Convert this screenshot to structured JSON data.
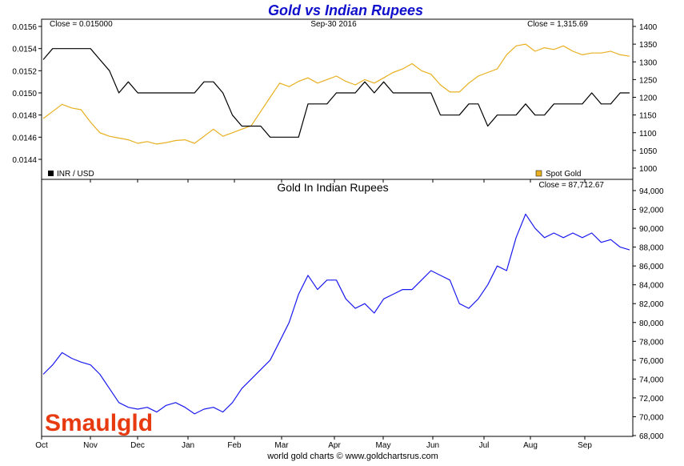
{
  "title": "Gold vs Indian Rupees",
  "footer": "world gold charts © www.goldchartsrus.com",
  "logo_text": "Smaulgld",
  "colors": {
    "title": "#1010cc",
    "inr": "#000000",
    "gold": "#e8b020",
    "rupee_gold": "#1a1aee",
    "grid": "#dddddd"
  },
  "top_panel": {
    "left_close": "Close = 0.015000",
    "date": "Sep-30  2016",
    "right_close": "Close = 1,315.69",
    "legend_left": "INR / USD",
    "legend_right": "Spot Gold",
    "left_axis_ticks": [
      "0.0156",
      "0.0154",
      "0.0152",
      "0.0150",
      "0.0148",
      "0.0146",
      "0.0144"
    ],
    "right_axis_ticks": [
      "1400",
      "1350",
      "1300",
      "1250",
      "1200",
      "1150",
      "1100",
      "1050",
      "1000"
    ]
  },
  "bottom_panel": {
    "title": "Gold In Indian Rupees",
    "right_close": "Close = 87,712.67",
    "axis_ticks": [
      "94,000",
      "92,000",
      "90,000",
      "88,000",
      "86,000",
      "84,000",
      "82,000",
      "80,000",
      "78,000",
      "76,000",
      "74,000",
      "72,000",
      "70,000",
      "68,000"
    ]
  },
  "x_axis_ticks": [
    "Oct",
    "Nov",
    "Dec",
    "Jan",
    "Feb",
    "Mar",
    "Apr",
    "May",
    "Jun",
    "Jul",
    "Aug",
    "Sep"
  ],
  "chart_data": [
    {
      "type": "line",
      "x_range": [
        "Oct 2015",
        "Sep-30 2016"
      ],
      "y_left_range": [
        0.0144,
        0.0156
      ],
      "y_right_range": [
        1000,
        1400
      ],
      "series": [
        {
          "name": "INR / USD",
          "axis": "left",
          "values": [
            0.0153,
            0.0154,
            0.0154,
            0.0154,
            0.0154,
            0.0154,
            0.0153,
            0.0152,
            0.015,
            0.0151,
            0.015,
            0.015,
            0.015,
            0.015,
            0.015,
            0.015,
            0.015,
            0.0151,
            0.0151,
            0.015,
            0.0148,
            0.0147,
            0.0147,
            0.0147,
            0.0146,
            0.0146,
            0.0146,
            0.0146,
            0.0149,
            0.0149,
            0.0149,
            0.015,
            0.015,
            0.015,
            0.0151,
            0.015,
            0.0151,
            0.015,
            0.015,
            0.015,
            0.015,
            0.015,
            0.0148,
            0.0148,
            0.0148,
            0.0149,
            0.0149,
            0.0147,
            0.0148,
            0.0148,
            0.0148,
            0.0149,
            0.0148,
            0.0148,
            0.0149,
            0.0149,
            0.0149,
            0.0149,
            0.015,
            0.0149,
            0.0149,
            0.015,
            0.015
          ]
        },
        {
          "name": "Spot Gold",
          "axis": "right",
          "values": [
            1140,
            1160,
            1180,
            1170,
            1165,
            1130,
            1100,
            1090,
            1085,
            1080,
            1070,
            1075,
            1068,
            1072,
            1078,
            1080,
            1070,
            1090,
            1110,
            1090,
            1100,
            1110,
            1120,
            1160,
            1200,
            1240,
            1230,
            1245,
            1255,
            1240,
            1250,
            1260,
            1245,
            1235,
            1250,
            1240,
            1255,
            1270,
            1280,
            1295,
            1275,
            1265,
            1235,
            1215,
            1215,
            1240,
            1260,
            1270,
            1280,
            1320,
            1345,
            1350,
            1330,
            1340,
            1335,
            1345,
            1330,
            1320,
            1325,
            1325,
            1330,
            1320,
            1316
          ]
        }
      ]
    },
    {
      "type": "line",
      "title": "Gold In Indian Rupees",
      "x_range": [
        "Oct 2015",
        "Sep-30 2016"
      ],
      "ylim": [
        68000,
        94000
      ],
      "series": [
        {
          "values": [
            74500,
            75500,
            76800,
            76200,
            75800,
            75500,
            74500,
            73000,
            71500,
            71000,
            70800,
            71000,
            70500,
            71200,
            71500,
            71000,
            70300,
            70800,
            71000,
            70500,
            71500,
            73000,
            74000,
            75000,
            76000,
            78000,
            80000,
            83000,
            85000,
            83500,
            84500,
            84500,
            82500,
            81500,
            82000,
            81000,
            82500,
            83000,
            83500,
            83500,
            84500,
            85500,
            85000,
            84500,
            82000,
            81500,
            82500,
            84000,
            86000,
            85500,
            89000,
            91500,
            90000,
            89000,
            89500,
            89000,
            89500,
            89000,
            89500,
            88500,
            88800,
            88000,
            87700
          ]
        }
      ]
    }
  ]
}
